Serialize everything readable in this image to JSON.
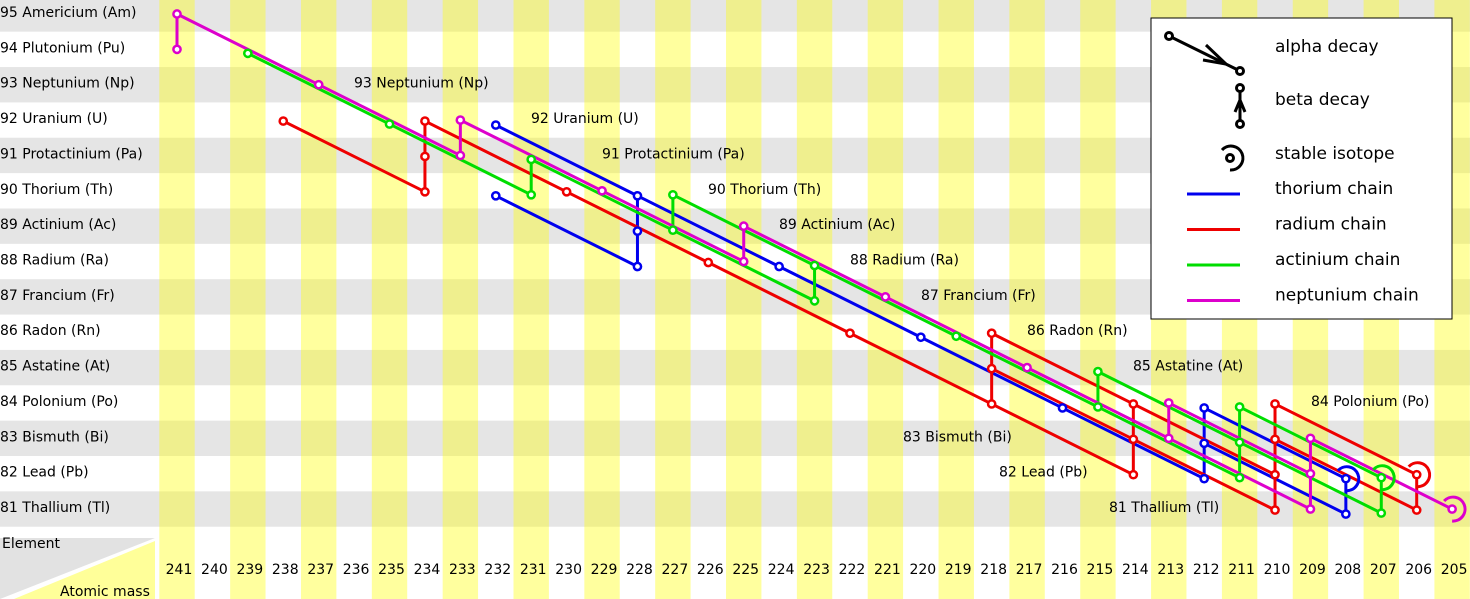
{
  "header": {
    "element": "Element",
    "mass": "Atomic mass"
  },
  "elements": [
    {
      "z": 95,
      "label": "95 Americium (Am)"
    },
    {
      "z": 94,
      "label": "94 Plutonium (Pu)"
    },
    {
      "z": 93,
      "label": "93 Neptunium (Np)"
    },
    {
      "z": 92,
      "label": "92 Uranium (U)"
    },
    {
      "z": 91,
      "label": "91 Protactinium (Pa)"
    },
    {
      "z": 90,
      "label": "90 Thorium (Th)"
    },
    {
      "z": 89,
      "label": "89 Actinium (Ac)"
    },
    {
      "z": 88,
      "label": "88 Radium (Ra)"
    },
    {
      "z": 87,
      "label": "87 Francium (Fr)"
    },
    {
      "z": 86,
      "label": "86 Radon (Rn)"
    },
    {
      "z": 85,
      "label": "85 Astatine (At)"
    },
    {
      "z": 84,
      "label": "84 Polonium (Po)"
    },
    {
      "z": 83,
      "label": "83 Bismuth (Bi)"
    },
    {
      "z": 82,
      "label": "82 Lead (Pb)"
    },
    {
      "z": 81,
      "label": "81 Thallium (Tl)"
    }
  ],
  "masses": [
    241,
    240,
    239,
    238,
    237,
    236,
    235,
    234,
    233,
    232,
    231,
    230,
    229,
    228,
    227,
    226,
    225,
    224,
    223,
    222,
    221,
    220,
    219,
    218,
    217,
    216,
    215,
    214,
    213,
    212,
    211,
    210,
    209,
    208,
    207,
    206,
    205
  ],
  "legend": {
    "alpha": "alpha decay",
    "beta": "beta decay",
    "stable": "stable isotope"
  },
  "chains": [
    {
      "name": "thorium chain",
      "color": "#0000ee",
      "nuclides": [
        [
          232,
          92
        ],
        [
          228,
          90
        ],
        [
          232,
          90
        ],
        [
          228,
          88
        ],
        [
          228,
          89
        ],
        [
          224,
          88
        ],
        [
          220,
          86
        ],
        [
          216,
          84
        ],
        [
          212,
          82
        ],
        [
          212,
          83
        ],
        [
          212,
          84
        ],
        [
          208,
          81
        ],
        [
          208,
          82
        ]
      ]
    },
    {
      "name": "radium chain",
      "color": "#ee0000",
      "nuclides": [
        [
          238,
          92
        ],
        [
          234,
          90
        ],
        [
          234,
          91
        ],
        [
          234,
          92
        ],
        [
          230,
          90
        ],
        [
          226,
          88
        ],
        [
          222,
          86
        ],
        [
          218,
          84
        ],
        [
          218,
          85
        ],
        [
          218,
          86
        ],
        [
          214,
          82
        ],
        [
          214,
          83
        ],
        [
          214,
          84
        ],
        [
          210,
          81
        ],
        [
          210,
          82
        ],
        [
          210,
          83
        ],
        [
          210,
          84
        ],
        [
          206,
          81
        ],
        [
          206,
          82
        ]
      ]
    },
    {
      "name": "actinium chain",
      "color": "#00dd00",
      "nuclides": [
        [
          239,
          94
        ],
        [
          235,
          92
        ],
        [
          231,
          90
        ],
        [
          231,
          91
        ],
        [
          227,
          89
        ],
        [
          227,
          90
        ],
        [
          223,
          87
        ],
        [
          223,
          88
        ],
        [
          219,
          86
        ],
        [
          215,
          84
        ],
        [
          215,
          85
        ],
        [
          211,
          82
        ],
        [
          211,
          83
        ],
        [
          211,
          84
        ],
        [
          207,
          81
        ],
        [
          207,
          82
        ]
      ]
    },
    {
      "name": "neptunium chain",
      "color": "#dd00cc",
      "nuclides": [
        [
          241,
          94
        ],
        [
          241,
          95
        ],
        [
          237,
          93
        ],
        [
          233,
          91
        ],
        [
          233,
          92
        ],
        [
          229,
          90
        ],
        [
          225,
          88
        ],
        [
          225,
          89
        ],
        [
          221,
          87
        ],
        [
          217,
          85
        ],
        [
          213,
          83
        ],
        [
          213,
          84
        ],
        [
          209,
          81
        ],
        [
          209,
          82
        ],
        [
          209,
          83
        ],
        [
          205,
          81
        ]
      ]
    }
  ]
}
